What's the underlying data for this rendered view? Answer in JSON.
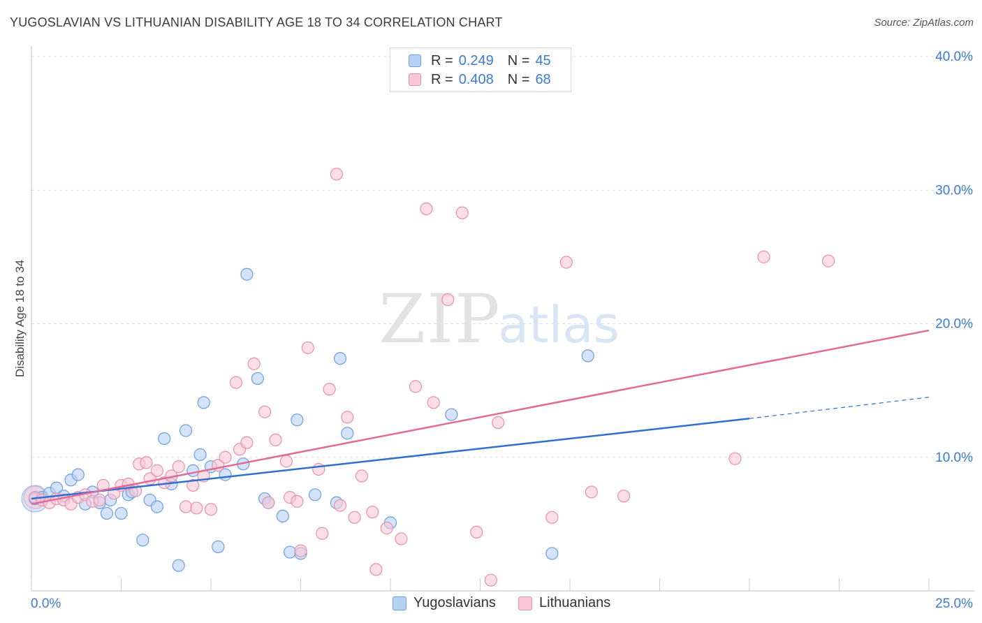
{
  "header": {
    "title": "YUGOSLAVIAN VS LITHUANIAN DISABILITY AGE 18 TO 34 CORRELATION CHART",
    "source": "Source: ZipAtlas.com"
  },
  "watermark": {
    "part1": "ZIP",
    "part2": "atlas"
  },
  "legend": {
    "series": [
      {
        "name": "Yugoslavians",
        "r_label": "R =",
        "r_value": "0.249",
        "n_label": "N =",
        "n_value": "45"
      },
      {
        "name": "Lithuanians",
        "r_label": "R =",
        "r_value": "0.408",
        "n_label": "N =",
        "n_value": "68"
      }
    ]
  },
  "colors": {
    "blue_fill": "#b7d1f5",
    "blue_stroke": "#6a9fe0",
    "blue_line": "#2f6fcf",
    "pink_fill": "#f8c8d6",
    "pink_stroke": "#e890ab",
    "pink_line": "#e06b96",
    "tick_text": "#3a7bd5",
    "grid": "#dedede"
  },
  "chart_data": {
    "type": "scatter",
    "ylabel": "Disability Age 18 to 34",
    "xlim": [
      0,
      25
    ],
    "ylim": [
      0,
      40
    ],
    "x_tick_labels": [
      "0.0%",
      "25.0%"
    ],
    "y_ticks": [
      10,
      20,
      30,
      40
    ],
    "y_tick_labels": [
      "10.0%",
      "20.0%",
      "30.0%",
      "40.0%"
    ],
    "grid": true,
    "legend_position": "top-center",
    "series": [
      {
        "name": "Yugoslavians",
        "points": [
          [
            0.1,
            6.9
          ],
          [
            0.3,
            7.0
          ],
          [
            0.5,
            7.3
          ],
          [
            0.7,
            7.7
          ],
          [
            0.9,
            7.1
          ],
          [
            1.1,
            8.3
          ],
          [
            1.3,
            8.7
          ],
          [
            1.5,
            6.5
          ],
          [
            1.7,
            7.4
          ],
          [
            1.9,
            6.6
          ],
          [
            2.1,
            5.8
          ],
          [
            2.2,
            6.8
          ],
          [
            2.5,
            5.8
          ],
          [
            2.7,
            7.2
          ],
          [
            2.8,
            7.4
          ],
          [
            3.1,
            3.8
          ],
          [
            3.3,
            6.8
          ],
          [
            3.5,
            6.3
          ],
          [
            3.7,
            11.4
          ],
          [
            3.9,
            8.0
          ],
          [
            4.1,
            1.9
          ],
          [
            4.3,
            12.0
          ],
          [
            4.5,
            9.0
          ],
          [
            4.7,
            10.2
          ],
          [
            4.8,
            14.1
          ],
          [
            5.0,
            9.3
          ],
          [
            5.2,
            3.3
          ],
          [
            5.4,
            8.7
          ],
          [
            5.9,
            9.5
          ],
          [
            6.0,
            23.7
          ],
          [
            6.3,
            15.9
          ],
          [
            6.5,
            6.9
          ],
          [
            6.6,
            6.6
          ],
          [
            7.0,
            5.6
          ],
          [
            7.2,
            2.9
          ],
          [
            7.4,
            12.8
          ],
          [
            7.5,
            2.8
          ],
          [
            7.9,
            7.2
          ],
          [
            8.5,
            6.6
          ],
          [
            8.6,
            17.4
          ],
          [
            8.8,
            11.8
          ],
          [
            10.0,
            5.1
          ],
          [
            11.7,
            13.2
          ],
          [
            14.5,
            2.8
          ],
          [
            15.5,
            17.6
          ]
        ]
      },
      {
        "name": "Lithuanians",
        "points": [
          [
            0.1,
            7.0
          ],
          [
            0.3,
            6.8
          ],
          [
            0.5,
            6.6
          ],
          [
            0.7,
            6.9
          ],
          [
            0.9,
            6.8
          ],
          [
            1.1,
            6.5
          ],
          [
            1.3,
            7.0
          ],
          [
            1.5,
            7.2
          ],
          [
            1.7,
            6.7
          ],
          [
            1.9,
            6.8
          ],
          [
            2.0,
            7.9
          ],
          [
            2.3,
            7.3
          ],
          [
            2.5,
            7.9
          ],
          [
            2.7,
            8.0
          ],
          [
            2.9,
            7.5
          ],
          [
            3.0,
            9.5
          ],
          [
            3.2,
            9.6
          ],
          [
            3.3,
            8.4
          ],
          [
            3.5,
            9.0
          ],
          [
            3.7,
            8.1
          ],
          [
            3.9,
            8.6
          ],
          [
            4.1,
            9.3
          ],
          [
            4.3,
            6.3
          ],
          [
            4.5,
            7.9
          ],
          [
            4.6,
            6.2
          ],
          [
            4.8,
            8.6
          ],
          [
            5.0,
            6.1
          ],
          [
            5.2,
            9.4
          ],
          [
            5.4,
            10.0
          ],
          [
            5.7,
            15.6
          ],
          [
            5.8,
            10.6
          ],
          [
            6.0,
            11.1
          ],
          [
            6.2,
            17.0
          ],
          [
            6.5,
            13.4
          ],
          [
            6.6,
            6.6
          ],
          [
            6.8,
            11.3
          ],
          [
            7.1,
            9.7
          ],
          [
            7.2,
            7.0
          ],
          [
            7.4,
            6.7
          ],
          [
            7.5,
            3.0
          ],
          [
            7.7,
            18.2
          ],
          [
            8.0,
            9.1
          ],
          [
            8.1,
            4.3
          ],
          [
            8.3,
            15.1
          ],
          [
            8.5,
            31.2
          ],
          [
            8.6,
            6.4
          ],
          [
            8.8,
            13.0
          ],
          [
            9.0,
            5.5
          ],
          [
            9.2,
            8.6
          ],
          [
            9.5,
            5.9
          ],
          [
            9.6,
            1.6
          ],
          [
            9.9,
            4.7
          ],
          [
            10.3,
            3.9
          ],
          [
            10.7,
            15.3
          ],
          [
            11.0,
            28.6
          ],
          [
            11.2,
            14.1
          ],
          [
            11.6,
            21.8
          ],
          [
            12.0,
            28.3
          ],
          [
            12.4,
            4.4
          ],
          [
            12.8,
            0.8
          ],
          [
            13.0,
            12.6
          ],
          [
            14.5,
            5.5
          ],
          [
            14.9,
            24.6
          ],
          [
            15.6,
            7.4
          ],
          [
            16.5,
            7.1
          ],
          [
            19.6,
            9.9
          ],
          [
            20.4,
            25.0
          ],
          [
            22.2,
            24.7
          ]
        ]
      }
    ],
    "trend_lines": [
      {
        "name": "Yugoslavians",
        "x0": 0,
        "y0": 6.9,
        "x1": 20.0,
        "y1": 12.9,
        "x_dashed_to": 25.0,
        "y_dashed_to": 14.5
      },
      {
        "name": "Lithuanians",
        "x0": 0,
        "y0": 6.5,
        "x1": 25.0,
        "y1": 19.5
      }
    ]
  }
}
